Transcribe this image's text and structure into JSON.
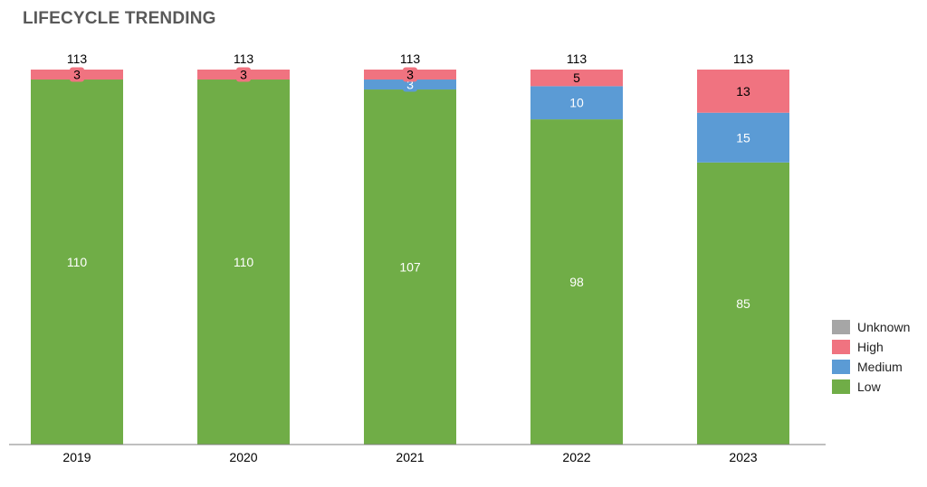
{
  "title": "LIFECYCLE TRENDING",
  "chart_data": {
    "type": "bar",
    "stacked": true,
    "categories": [
      "2019",
      "2020",
      "2021",
      "2022",
      "2023"
    ],
    "series": [
      {
        "name": "Low",
        "color": "#70ad47",
        "values": [
          110,
          110,
          107,
          98,
          85
        ],
        "label_color": "#ffffff"
      },
      {
        "name": "Medium",
        "color": "#5b9bd5",
        "values": [
          0,
          0,
          3,
          10,
          15
        ],
        "label_color": "#ffffff"
      },
      {
        "name": "High",
        "color": "#f07380",
        "values": [
          3,
          3,
          3,
          5,
          13
        ],
        "label_color": "#000000"
      },
      {
        "name": "Unknown",
        "color": "#a6a6a6",
        "values": [
          0,
          0,
          0,
          0,
          0
        ],
        "label_color": "#000000"
      }
    ],
    "totals": [
      113,
      113,
      113,
      113,
      113
    ],
    "ylim": [
      0,
      113
    ],
    "xlabel": "",
    "ylabel": "",
    "grid": false,
    "legend": {
      "position": "right",
      "order": [
        "Unknown",
        "High",
        "Medium",
        "Low"
      ]
    }
  }
}
